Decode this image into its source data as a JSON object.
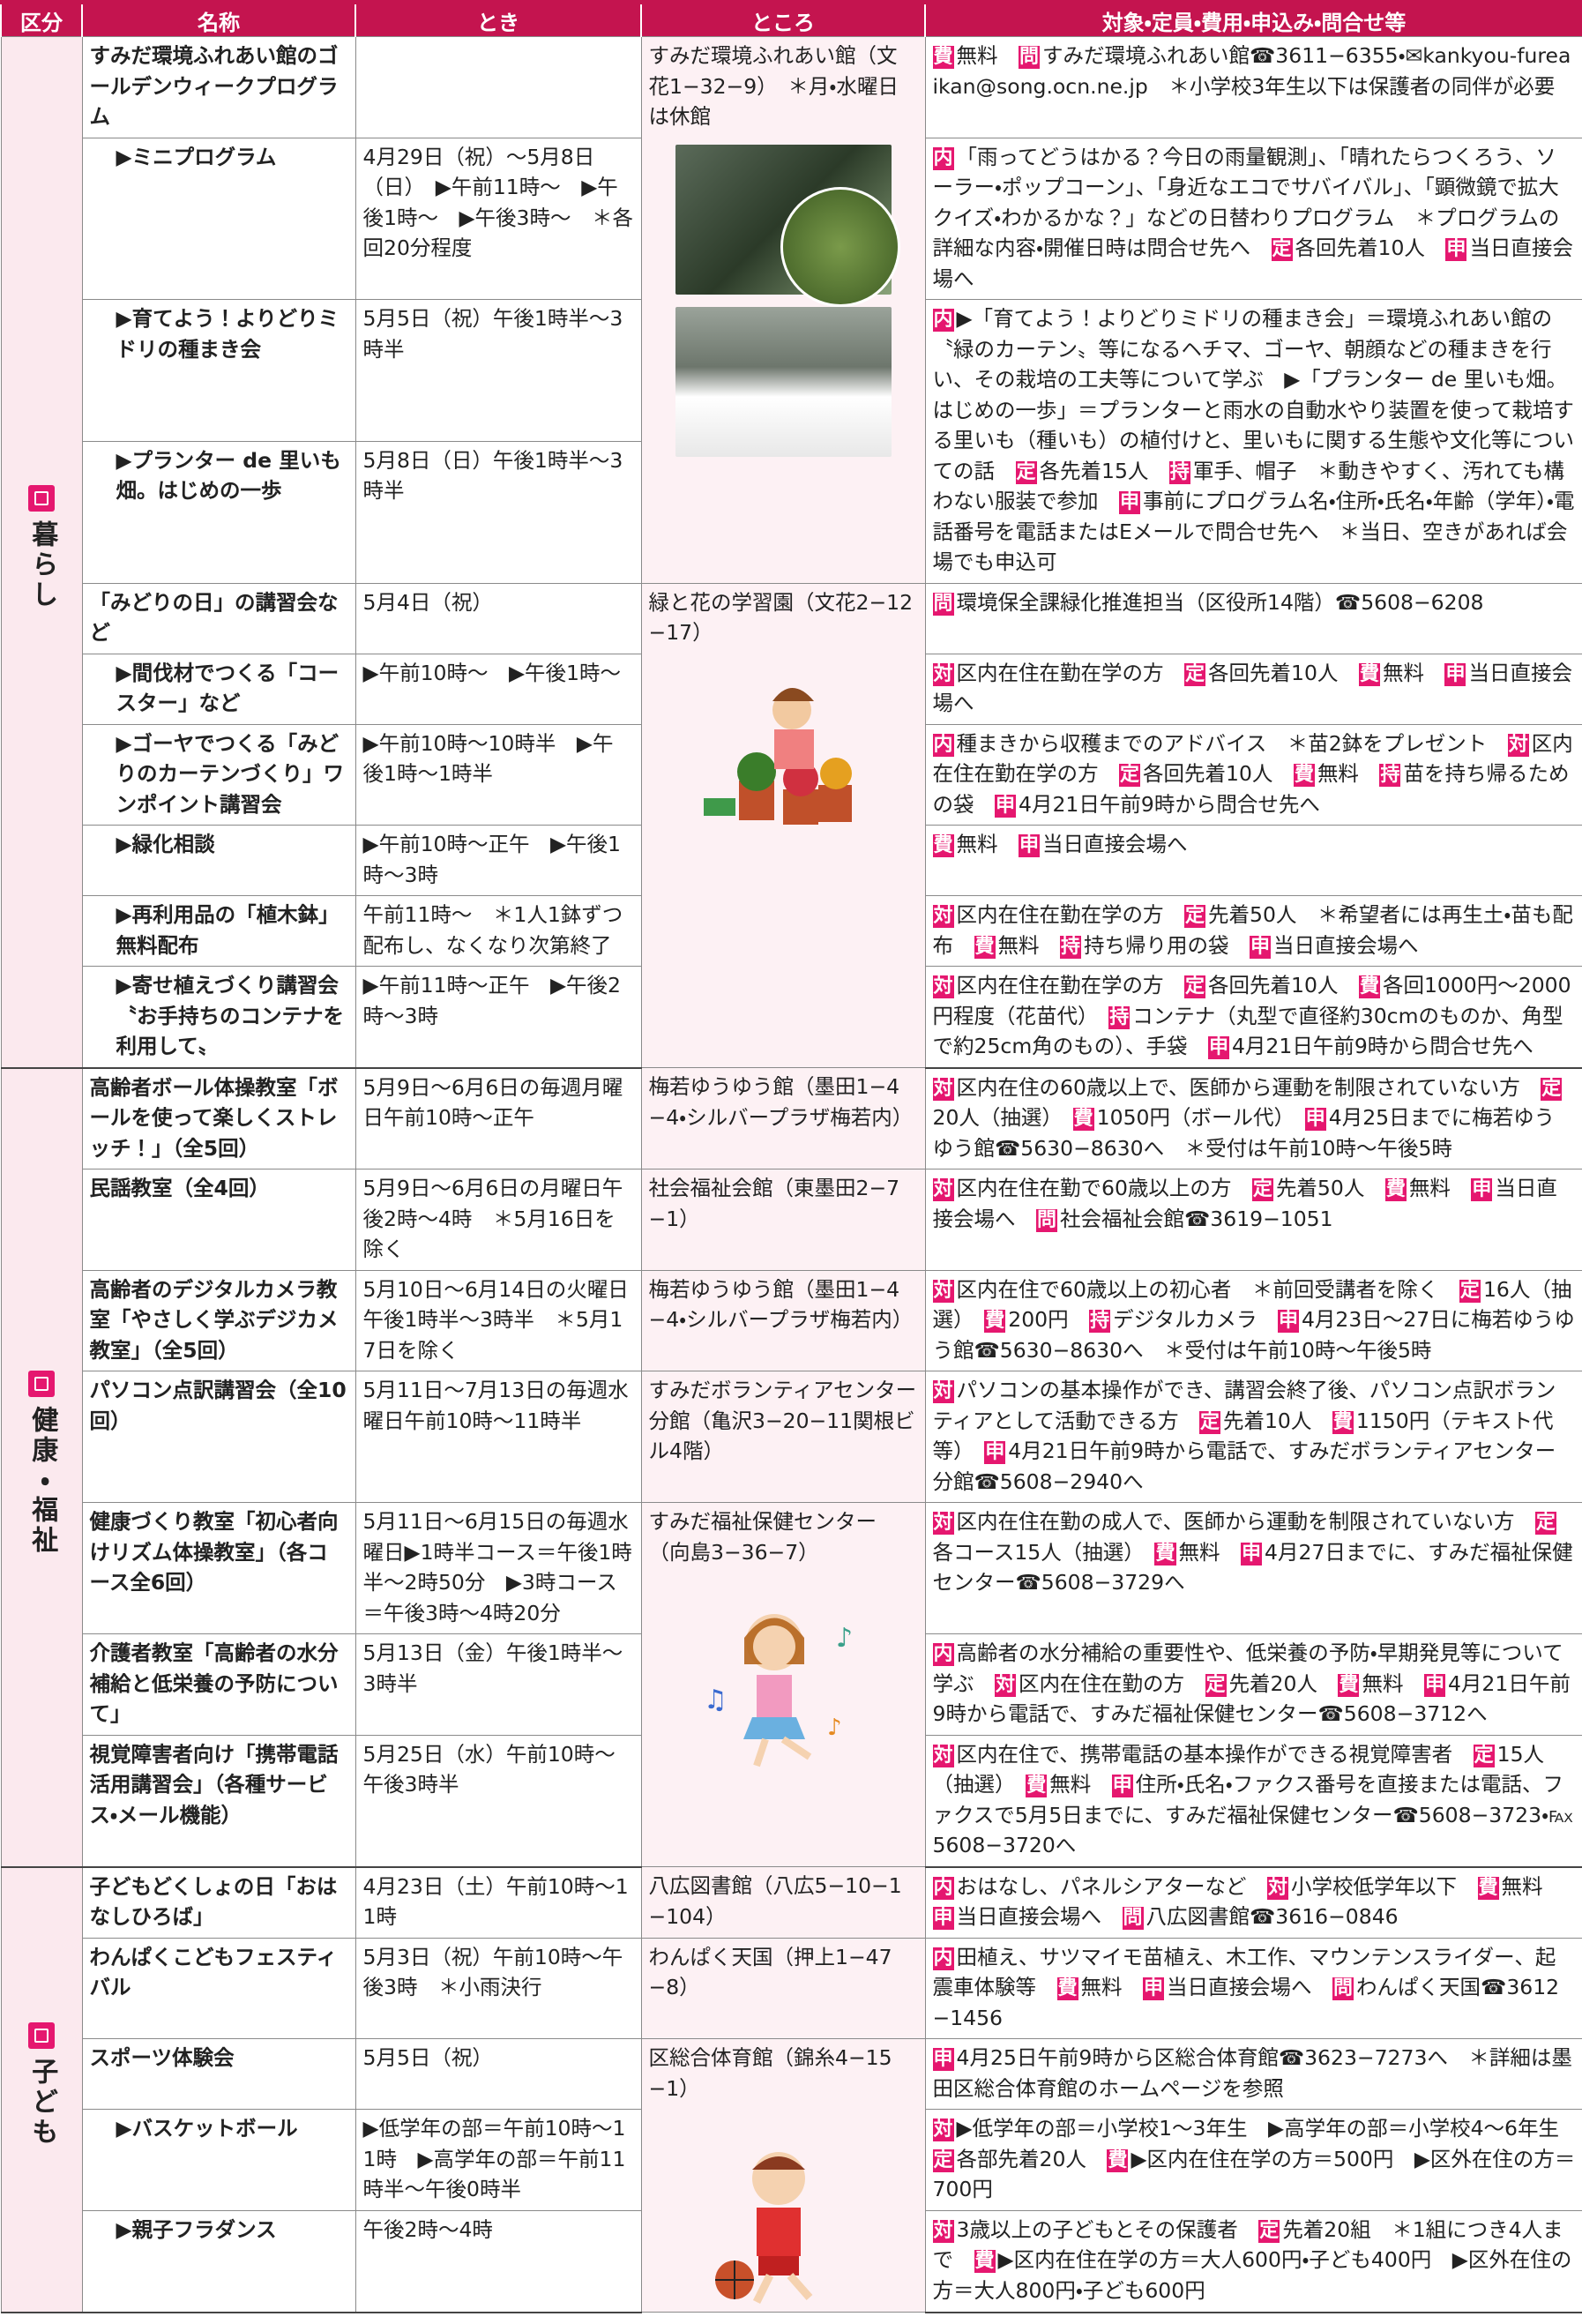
{
  "header": {
    "columns": [
      "区分",
      "名称",
      "とき",
      "ところ",
      "対象・定員・費用・申込み・問合せ等"
    ]
  },
  "sections": [
    {
      "label": "暮らし",
      "rows": [
        {
          "name": "すみだ環境ふれあい館のゴールデンウィークプログラム",
          "where": "すみだ環境ふれあい館（文花1−32−9）　＊月・水曜日は休館",
          "details": [
            {
              "k": "費",
              "t": "無料　"
            },
            {
              "k": "問",
              "t": "すみだ環境ふれあい館☎3611−6355・✉kankyou-fureaikan@song.ocn.ne.jp　＊小学校3年生以下は保護者の同伴が必要"
            }
          ]
        },
        {
          "name": "▶ミニプログラム",
          "when": "4月29日（祝）〜5月8日（日）　▶午前11時〜　▶午後1時〜　▶午後3時〜　＊各回20分程度",
          "details": [
            {
              "k": "内",
              "t": "「雨ってどうはかる？今日の雨量観測」、「晴れたらつくろう、ソーラー・ポップコーン」、「身近なエコでサバイバル」、「顕微鏡で拡大クイズ・わかるかな？」などの日替わりプログラム　＊プログラムの詳細な内容・開催日時は問合せ先へ　"
            },
            {
              "k": "定",
              "t": "各回先着10人　"
            },
            {
              "k": "申",
              "t": "当日直接会場へ"
            }
          ]
        },
        {
          "name": "▶育てよう！よりどりミドリの種まき会",
          "when": "5月5日（祝）午後1時半〜3時半",
          "details": [
            {
              "k": "内",
              "t": "▶「育てよう！よりどりミドリの種まき会」＝環境ふれあい館の〝緑のカーテン〟等になるヘチマ、ゴーヤ、朝顔などの種まきを行い、その栽培の工夫等について学ぶ　▶「プランター de 里いも畑。はじめの一歩」＝プランターと雨水の自動水やり装置を使って栽培する里いも（種いも）の植付けと、里いもに関する生態や文化等についての話　"
            },
            {
              "k": "定",
              "t": "各先着15人　"
            },
            {
              "k": "持",
              "t": "軍手、帽子　＊動きやすく、汚れても構わない服装で参加　"
            },
            {
              "k": "申",
              "t": "事前にプログラム名・住所・氏名・年齢（学年）・電話番号を電話またはEメールで問合せ先へ　＊当日、空きがあれば会場でも申込可"
            }
          ]
        },
        {
          "name": "▶プランター de 里いも畑。はじめの一歩",
          "when": "5月8日（日）午後1時半〜3時半"
        },
        {
          "name": "「みどりの日」の講習会など",
          "when": "5月4日（祝）",
          "where": "緑と花の学習園（文花2−12−17）",
          "details": [
            {
              "k": "問",
              "t": "環境保全課緑化推進担当（区役所14階）☎5608−6208"
            }
          ]
        },
        {
          "name": "▶間伐材でつくる「コースター」など",
          "when": "▶午前10時〜　▶午後1時〜",
          "details": [
            {
              "k": "対",
              "t": "区内在住在勤在学の方　"
            },
            {
              "k": "定",
              "t": "各回先着10人　"
            },
            {
              "k": "費",
              "t": "無料　"
            },
            {
              "k": "申",
              "t": "当日直接会場へ"
            }
          ]
        },
        {
          "name": "▶ゴーヤでつくる「みどりのカーテンづくり」ワンポイント講習会",
          "when": "▶午前10時〜10時半　▶午後1時〜1時半",
          "details": [
            {
              "k": "内",
              "t": "種まきから収穫までのアドバイス　＊苗2鉢をプレゼント　"
            },
            {
              "k": "対",
              "t": "区内在住在勤在学の方　"
            },
            {
              "k": "定",
              "t": "各回先着10人　"
            },
            {
              "k": "費",
              "t": "無料　"
            },
            {
              "k": "持",
              "t": "苗を持ち帰るための袋　"
            },
            {
              "k": "申",
              "t": "4月21日午前9時から問合せ先へ"
            }
          ]
        },
        {
          "name": "▶緑化相談",
          "when": "▶午前10時〜正午　▶午後1時〜3時",
          "details": [
            {
              "k": "費",
              "t": "無料　"
            },
            {
              "k": "申",
              "t": "当日直接会場へ"
            }
          ]
        },
        {
          "name": "▶再利用品の「植木鉢」無料配布",
          "when": "午前11時〜　＊1人1鉢ずつ配布し、なくなり次第終了",
          "details": [
            {
              "k": "対",
              "t": "区内在住在勤在学の方　"
            },
            {
              "k": "定",
              "t": "先着50人　＊希望者には再生土・苗も配布　"
            },
            {
              "k": "費",
              "t": "無料　"
            },
            {
              "k": "持",
              "t": "持ち帰り用の袋　"
            },
            {
              "k": "申",
              "t": "当日直接会場へ"
            }
          ]
        },
        {
          "name": "▶寄せ植えづくり講習会〝お手持ちのコンテナを利用して〟",
          "when": "▶午前11時〜正午　▶午後2時〜3時",
          "details": [
            {
              "k": "対",
              "t": "区内在住在勤在学の方　"
            },
            {
              "k": "定",
              "t": "各回先着10人　"
            },
            {
              "k": "費",
              "t": "各回1000円〜2000円程度（花苗代）　"
            },
            {
              "k": "持",
              "t": "コンテナ（丸型で直径約30cmのものか、角型で約25cm角のもの）、手袋　"
            },
            {
              "k": "申",
              "t": "4月21日午前9時から問合せ先へ"
            }
          ]
        }
      ]
    },
    {
      "label": "健康・福祉",
      "rows": [
        {
          "name": "高齢者ボール体操教室「ボールを使って楽しくストレッチ！」（全5回）",
          "when": "5月9日〜6月6日の毎週月曜日午前10時〜正午",
          "where": "梅若ゆうゆう館（墨田1−4−4・シルバープラザ梅若内）",
          "details": [
            {
              "k": "対",
              "t": "区内在住の60歳以上で、医師から運動を制限されていない方　"
            },
            {
              "k": "定",
              "t": "20人（抽選）　"
            },
            {
              "k": "費",
              "t": "1050円（ボール代）　"
            },
            {
              "k": "申",
              "t": "4月25日までに梅若ゆうゆう館☎5630−8630へ　＊受付は午前10時〜午後5時"
            }
          ]
        },
        {
          "name": "民謡教室（全4回）",
          "when": "5月9日〜6月6日の月曜日午後2時〜4時　＊5月16日を除く",
          "where": "社会福祉会館（東墨田2−7−1）",
          "details": [
            {
              "k": "対",
              "t": "区内在住在勤で60歳以上の方　"
            },
            {
              "k": "定",
              "t": "先着50人　"
            },
            {
              "k": "費",
              "t": "無料　"
            },
            {
              "k": "申",
              "t": "当日直接会場へ　"
            },
            {
              "k": "問",
              "t": "社会福祉会館☎3619−1051"
            }
          ]
        },
        {
          "name": "高齢者のデジタルカメラ教室「やさしく学ぶデジカメ教室」（全5回）",
          "when": "5月10日〜6月14日の火曜日午後1時半〜3時半　＊5月17日を除く",
          "where": "梅若ゆうゆう館（墨田1−4−4・シルバープラザ梅若内）",
          "details": [
            {
              "k": "対",
              "t": "区内在住で60歳以上の初心者　＊前回受講者を除く　"
            },
            {
              "k": "定",
              "t": "16人（抽選）　"
            },
            {
              "k": "費",
              "t": "200円　"
            },
            {
              "k": "持",
              "t": "デジタルカメラ　"
            },
            {
              "k": "申",
              "t": "4月23日〜27日に梅若ゆうゆう館☎5630−8630へ　＊受付は午前10時〜午後5時"
            }
          ]
        },
        {
          "name": "パソコン点訳講習会（全10回）",
          "when": "5月11日〜7月13日の毎週水曜日午前10時〜11時半",
          "where": "すみだボランティアセンター分館（亀沢3−20−11関根ビル4階）",
          "details": [
            {
              "k": "対",
              "t": "パソコンの基本操作ができ、講習会終了後、パソコン点訳ボランティアとして活動できる方　"
            },
            {
              "k": "定",
              "t": "先着10人　"
            },
            {
              "k": "費",
              "t": "1150円（テキスト代等）　"
            },
            {
              "k": "申",
              "t": "4月21日午前9時から電話で、すみだボランティアセンター分館☎5608−2940へ"
            }
          ]
        },
        {
          "name": "健康づくり教室「初心者向けリズム体操教室」（各コース全6回）",
          "when": "5月11日〜6月15日の毎週水曜日▶1時半コース＝午後1時半〜2時50分　▶3時コース＝午後3時〜4時20分",
          "where": "すみだ福祉保健センター（向島3−36−7）",
          "details": [
            {
              "k": "対",
              "t": "区内在住在勤の成人で、医師から運動を制限されていない方　"
            },
            {
              "k": "定",
              "t": "各コース15人（抽選）　"
            },
            {
              "k": "費",
              "t": "無料　"
            },
            {
              "k": "申",
              "t": "4月27日までに、すみだ福祉保健センター☎5608−3729へ"
            }
          ]
        },
        {
          "name": "介護者教室「高齢者の水分補給と低栄養の予防について」",
          "when": "5月13日（金）午後1時半〜3時半",
          "details": [
            {
              "k": "内",
              "t": "高齢者の水分補給の重要性や、低栄養の予防・早期発見等について学ぶ　"
            },
            {
              "k": "対",
              "t": "区内在住在勤の方　"
            },
            {
              "k": "定",
              "t": "先着20人　"
            },
            {
              "k": "費",
              "t": "無料　"
            },
            {
              "k": "申",
              "t": "4月21日午前9時から電話で、すみだ福祉保健センター☎5608−3712へ"
            }
          ]
        },
        {
          "name": "視覚障害者向け「携帯電話活用講習会」（各種サービス・メール機能）",
          "when": "5月25日（水）午前10時〜午後3時半",
          "details": [
            {
              "k": "対",
              "t": "区内在住で、携帯電話の基本操作ができる視覚障害者　"
            },
            {
              "k": "定",
              "t": "15人（抽選）　"
            },
            {
              "k": "費",
              "t": "無料　"
            },
            {
              "k": "申",
              "t": "住所・氏名・ファクス番号を直接または電話、ファクスで5月5日までに、すみだ福祉保健センター☎5608−3723・℻5608−3720へ"
            }
          ]
        }
      ]
    },
    {
      "label": "子ども",
      "rows": [
        {
          "name": "子どもどくしょの日「おはなしひろば」",
          "when": "4月23日（土）午前10時〜11時",
          "where": "八広図書館（八広5−10−1−104）",
          "details": [
            {
              "k": "内",
              "t": "おはなし、パネルシアターなど　"
            },
            {
              "k": "対",
              "t": "小学校低学年以下　"
            },
            {
              "k": "費",
              "t": "無料　"
            },
            {
              "k": "申",
              "t": "当日直接会場へ　"
            },
            {
              "k": "問",
              "t": "八広図書館☎3616−0846"
            }
          ]
        },
        {
          "name": "わんぱくこどもフェスティバル",
          "when": "5月3日（祝）午前10時〜午後3時　＊小雨決行",
          "where": "わんぱく天国（押上1−47−8）",
          "details": [
            {
              "k": "内",
              "t": "田植え、サツマイモ苗植え、木工作、マウンテンスライダー、起震車体験等　"
            },
            {
              "k": "費",
              "t": "無料　"
            },
            {
              "k": "申",
              "t": "当日直接会場へ　"
            },
            {
              "k": "問",
              "t": "わんぱく天国☎3612−1456"
            }
          ]
        },
        {
          "name": "スポーツ体験会",
          "when": "5月5日（祝）",
          "where": "区総合体育館（錦糸4−15−1）",
          "details": [
            {
              "k": "申",
              "t": "4月25日午前9時から区総合体育館☎3623−7273へ　＊詳細は墨田区総合体育館のホームページを参照"
            }
          ]
        },
        {
          "name": "▶バスケットボール",
          "when": "▶低学年の部＝午前10時〜11時　▶高学年の部＝午前11時半〜午後0時半",
          "details": [
            {
              "k": "対",
              "t": "▶低学年の部＝小学校1〜3年生　▶高学年の部＝小学校4〜6年生　"
            },
            {
              "k": "定",
              "t": "各部先着20人　"
            },
            {
              "k": "費",
              "t": "▶区内在住在学の方＝500円　▶区外在住の方＝700円"
            }
          ]
        },
        {
          "name": "▶親子フラダンス",
          "when": "午後2時〜4時",
          "details": [
            {
              "k": "対",
              "t": "3歳以上の子どもとその保護者　"
            },
            {
              "k": "定",
              "t": "先着20組　＊1組につき4人まで　"
            },
            {
              "k": "費",
              "t": "▶区内在住在学の方＝大人600円・子ども400円　▶区外在住の方＝大人800円・子ども600円"
            }
          ]
        }
      ]
    }
  ]
}
